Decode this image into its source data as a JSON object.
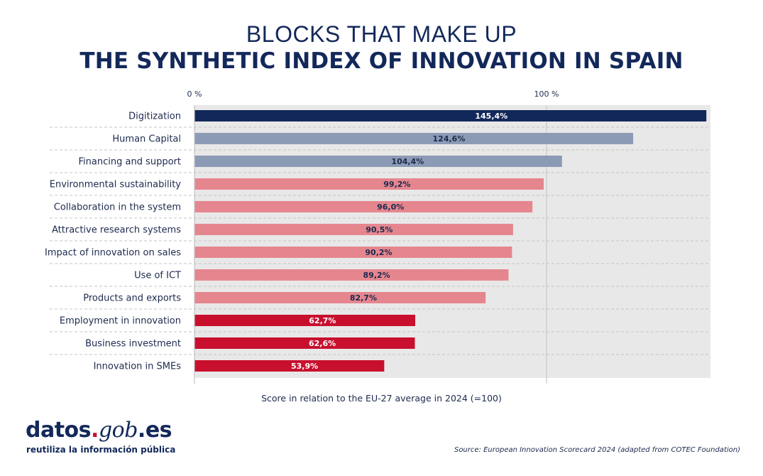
{
  "title": {
    "line1": "BLOCKS THAT MAKE UP",
    "line2": "THE SYNTHETIC INDEX OF INNOVATION IN SPAIN"
  },
  "chart_data": {
    "type": "bar",
    "orientation": "horizontal",
    "title": "BLOCKS THAT MAKE UP THE SYNTHETIC INDEX OF INNOVATION IN SPAIN",
    "xlabel": "Score in relation to the EU-27 average in 2024 (=100)",
    "ylabel": "",
    "xlim": [
      0,
      146
    ],
    "ticks": [
      {
        "value": 0,
        "label": "0 %"
      },
      {
        "value": 100,
        "label": "100 %"
      }
    ],
    "categories": [
      "Digitization",
      "Human Capital",
      "Financing and support",
      "Environmental sustainability",
      "Collaboration in the system",
      "Attractive research systems",
      "Impact of innovation on sales",
      "Use of ICT",
      "Products and exports",
      "Employment in innovation",
      "Business investment",
      "Innovation in SMEs"
    ],
    "values": [
      145.4,
      124.6,
      104.4,
      99.2,
      96.0,
      90.5,
      90.2,
      89.2,
      82.7,
      62.7,
      62.6,
      53.9
    ],
    "value_labels": [
      "145,4%",
      "124,6%",
      "104,4%",
      "99,2%",
      "96,0%",
      "90,5%",
      "90,2%",
      "89,2%",
      "82,7%",
      "62,7%",
      "62,6%",
      "53,9%"
    ],
    "bar_colors": [
      "#13285a",
      "#8c9bb5",
      "#8c9bb5",
      "#e5868f",
      "#e5868f",
      "#e5868f",
      "#e5868f",
      "#e5868f",
      "#e5868f",
      "#c8102e",
      "#c8102e",
      "#c8102e"
    ],
    "label_colors": [
      "#ffffff",
      "#1d2a4d",
      "#1d2a4d",
      "#1d2a4d",
      "#1d2a4d",
      "#1d2a4d",
      "#1d2a4d",
      "#1d2a4d",
      "#1d2a4d",
      "#ffffff",
      "#ffffff",
      "#ffffff"
    ],
    "grid": true
  },
  "logo": {
    "name_main": "datos",
    "name_dot": ".",
    "name_gob": "gob",
    "name_es": ".es",
    "tagline": "reutiliza la información pública"
  },
  "source": "Source: European Innovation Scorecard 2024 (adapted from COTEC Foundation)",
  "colors": {
    "navy": "#13285a",
    "grey_blue": "#8c9bb5",
    "pink": "#e5868f",
    "red": "#c8102e",
    "plot_bg": "#e8e8e8"
  }
}
